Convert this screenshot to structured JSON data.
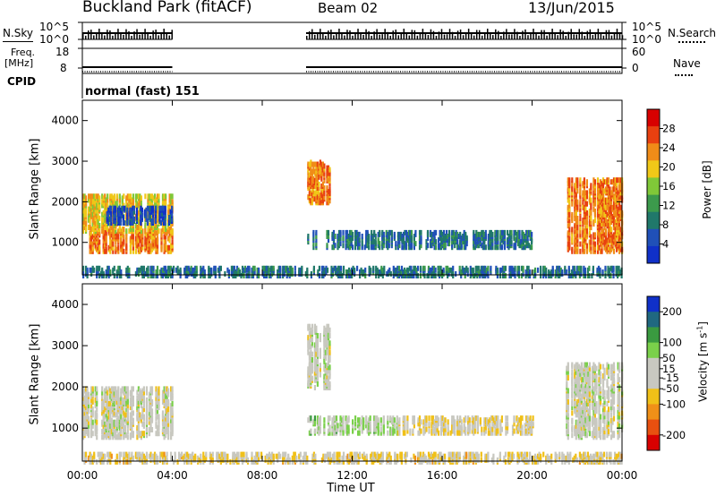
{
  "header": {
    "station": "Buckland Park (fitACF)",
    "beam": "Beam 02",
    "date": "13/Jun/2015"
  },
  "status_panels": {
    "nsky_label": "N.Sky",
    "nsky_ticks": [
      "10^5",
      "10^0"
    ],
    "nsearch_label": "N.Search",
    "nsearch_ticks": [
      "10^5",
      "10^0"
    ],
    "freq_label_1": "Freq.",
    "freq_label_2": "[MHz]",
    "freq_ticks": [
      "18",
      "8"
    ],
    "nave_label": "Nave",
    "nave_ticks": [
      "60",
      "0"
    ],
    "cpid_label": "CPID",
    "cpid_value": "normal (fast) 151"
  },
  "colors": {
    "power_scale": [
      "#1030c8",
      "#2050b8",
      "#20786a",
      "#3c9a4c",
      "#80c838",
      "#f0c818",
      "#f08c18",
      "#e84010",
      "#d80000"
    ],
    "velocity_scale": [
      "#1030c8",
      "#206880",
      "#3a9a40",
      "#7ad04a",
      "#c8c8c0",
      "#c8c8c0",
      "#f0c018",
      "#f09018",
      "#e85010",
      "#d80000"
    ]
  },
  "chart_data": [
    {
      "type": "heatmap",
      "title": "Power",
      "ylabel": "Slant Range [km]",
      "xlabel": "",
      "x_ticks": [
        "00:00",
        "04:00",
        "08:00",
        "12:00",
        "16:00",
        "20:00",
        "00:00"
      ],
      "y_ticks": [
        1000,
        2000,
        3000,
        4000
      ],
      "ylim": [
        200,
        4500
      ],
      "colorbar": {
        "label": "Power [dB]",
        "ticks": [
          4,
          8,
          12,
          16,
          20,
          24,
          28
        ],
        "range": [
          0,
          32
        ]
      },
      "echo_regions": [
        {
          "t": [
            0.3,
            4.0
          ],
          "range_km": [
            800,
            1300
          ],
          "value": 24
        },
        {
          "t": [
            0.0,
            4.0
          ],
          "range_km": [
            1300,
            2200
          ],
          "value": 20
        },
        {
          "t": [
            1.0,
            4.0
          ],
          "range_km": [
            1500,
            1900
          ],
          "value": 4
        },
        {
          "t": [
            10.0,
            11.0
          ],
          "range_km": [
            2000,
            3000
          ],
          "value": 24
        },
        {
          "t": [
            10.0,
            14.0
          ],
          "range_km": [
            900,
            1300
          ],
          "value": 8
        },
        {
          "t": [
            14.0,
            20.0
          ],
          "range_km": [
            900,
            1300
          ],
          "value": 8
        },
        {
          "t": [
            21.5,
            24.0
          ],
          "range_km": [
            800,
            2600
          ],
          "value": 24
        },
        {
          "t": [
            0.0,
            24.0
          ],
          "range_km": [
            200,
            400
          ],
          "value": 8
        }
      ]
    },
    {
      "type": "heatmap",
      "title": "Velocity",
      "ylabel": "Slant Range [km]",
      "xlabel": "Time UT",
      "x_ticks": [
        "00:00",
        "04:00",
        "08:00",
        "12:00",
        "16:00",
        "20:00",
        "00:00"
      ],
      "y_ticks": [
        1000,
        2000,
        3000,
        4000
      ],
      "ylim": [
        200,
        4500
      ],
      "colorbar": {
        "label": "Velocity [m s^-1]",
        "ticks": [
          200,
          100,
          50,
          15,
          -15,
          -50,
          -100,
          -200
        ],
        "range": [
          -250,
          250
        ]
      },
      "echo_regions": [
        {
          "t": [
            0.0,
            4.0
          ],
          "range_km": [
            800,
            2000
          ],
          "value": 0
        },
        {
          "t": [
            10.0,
            11.0
          ],
          "range_km": [
            2000,
            3500
          ],
          "value": 0
        },
        {
          "t": [
            10.0,
            14.0
          ],
          "range_km": [
            900,
            1300
          ],
          "value": 40
        },
        {
          "t": [
            14.0,
            20.0
          ],
          "range_km": [
            900,
            1300
          ],
          "value": -30
        },
        {
          "t": [
            21.5,
            24.0
          ],
          "range_km": [
            800,
            2600
          ],
          "value": 0
        },
        {
          "t": [
            0.0,
            24.0
          ],
          "range_km": [
            200,
            400
          ],
          "value": -40
        }
      ]
    }
  ]
}
